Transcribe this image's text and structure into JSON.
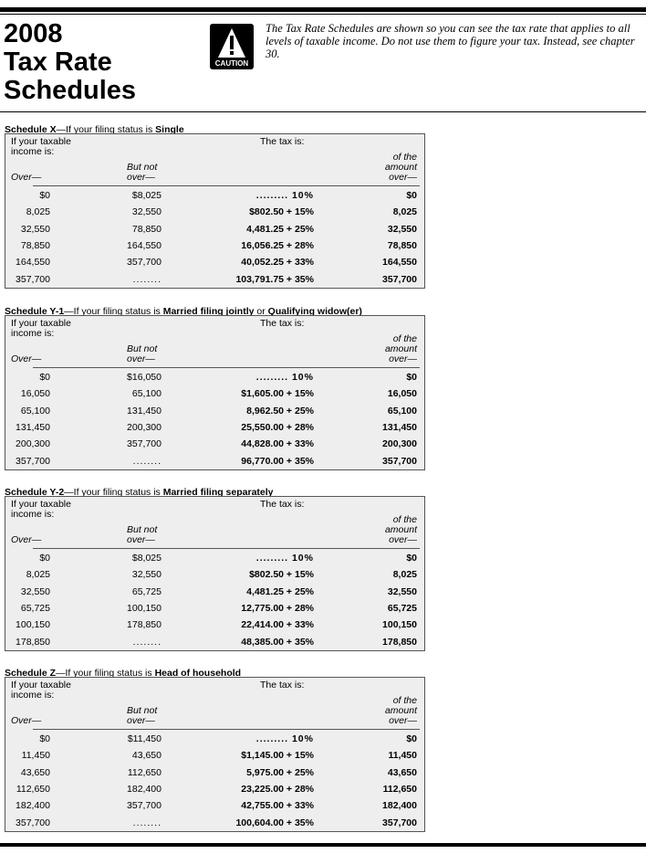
{
  "title": [
    "2008",
    "Tax Rate",
    "Schedules"
  ],
  "caution_label": "CAUTION",
  "intro": "The Tax Rate Schedules are shown so you can see the tax rate that applies to all levels of taxable income. Do not use them to figure your tax. Instead, see chapter 30.",
  "headers": {
    "income1": "If your taxable",
    "income2": "income is:",
    "over": "Over—",
    "but_not1": "But not",
    "but_not2": "over—",
    "tax_is": "The tax is:",
    "of1": "of the",
    "of2": "amount",
    "of3": "over—"
  },
  "schedules": [
    {
      "name": "Schedule X",
      "prefix": "—If your filing status is ",
      "status": "Single",
      "rows": [
        [
          "$0",
          "$8,025",
          ".........  10%",
          "$0"
        ],
        [
          "8,025",
          "32,550",
          "$802.50 + 15%",
          "8,025"
        ],
        [
          "32,550",
          "78,850",
          "4,481.25 + 25%",
          "32,550"
        ],
        [
          "78,850",
          "164,550",
          "16,056.25 + 28%",
          "78,850"
        ],
        [
          "164,550",
          "357,700",
          "40,052.25 + 33%",
          "164,550"
        ],
        [
          "357,700",
          "........",
          "103,791.75 + 35%",
          "357,700"
        ]
      ]
    },
    {
      "name": "Schedule Y-1",
      "prefix": "—If your filing status is ",
      "status": "Married filing jointly",
      "status_mid": " or ",
      "status2": "Qualifying widow(er)",
      "rows": [
        [
          "$0",
          "$16,050",
          ".........  10%",
          "$0"
        ],
        [
          "16,050",
          "65,100",
          "$1,605.00 + 15%",
          "16,050"
        ],
        [
          "65,100",
          "131,450",
          "8,962.50 + 25%",
          "65,100"
        ],
        [
          "131,450",
          "200,300",
          "25,550.00 + 28%",
          "131,450"
        ],
        [
          "200,300",
          "357,700",
          "44,828.00 + 33%",
          "200,300"
        ],
        [
          "357,700",
          "........",
          "96,770.00 + 35%",
          "357,700"
        ]
      ]
    },
    {
      "name": "Schedule Y-2",
      "prefix": "—If your filing status is ",
      "status": "Married filing separately",
      "rows": [
        [
          "$0",
          "$8,025",
          ".........  10%",
          "$0"
        ],
        [
          "8,025",
          "32,550",
          "$802.50 + 15%",
          "8,025"
        ],
        [
          "32,550",
          "65,725",
          "4,481.25 + 25%",
          "32,550"
        ],
        [
          "65,725",
          "100,150",
          "12,775.00 + 28%",
          "65,725"
        ],
        [
          "100,150",
          "178,850",
          "22,414.00 + 33%",
          "100,150"
        ],
        [
          "178,850",
          "........",
          "48,385.00 + 35%",
          "178,850"
        ]
      ]
    },
    {
      "name": "Schedule Z",
      "prefix": "—If your filing status is ",
      "status": "Head of household",
      "rows": [
        [
          "$0",
          "$11,450",
          ".........  10%",
          "$0"
        ],
        [
          "11,450",
          "43,650",
          "$1,145.00 + 15%",
          "11,450"
        ],
        [
          "43,650",
          "112,650",
          "5,975.00 + 25%",
          "43,650"
        ],
        [
          "112,650",
          "182,400",
          "23,225.00 + 28%",
          "112,650"
        ],
        [
          "182,400",
          "357,700",
          "42,755.00 + 33%",
          "182,400"
        ],
        [
          "357,700",
          "........",
          "100,604.00 + 35%",
          "357,700"
        ]
      ]
    }
  ]
}
